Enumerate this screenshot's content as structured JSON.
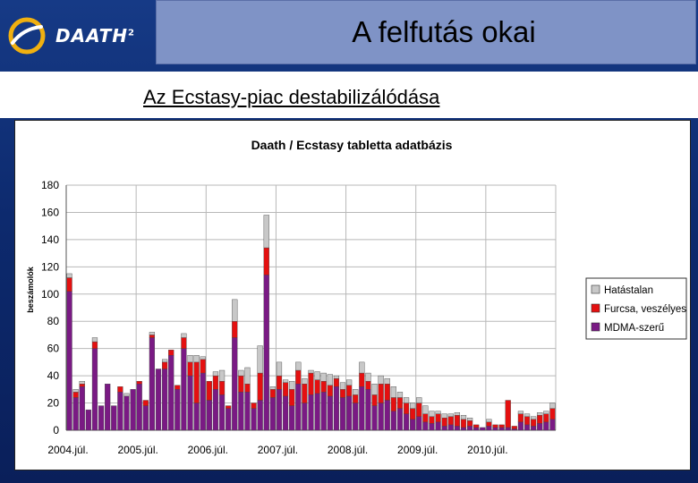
{
  "header": {
    "logo_text": "DAATH",
    "logo_sup": "2",
    "title": "A felfutás okai",
    "subtitle": "Az Ecstasy-piac destabilizálódása"
  },
  "colors": {
    "mdma": "#7a1a84",
    "furcsa": "#e41010",
    "hatastalan": "#c8c8c8"
  },
  "chart_data": {
    "type": "bar",
    "stacked": true,
    "title": "Daath / Ecstasy tabletta adatbázis",
    "ylabel": "beszámolók",
    "xlabel": "",
    "ylim": [
      0,
      180
    ],
    "yticks": [
      0,
      20,
      40,
      60,
      80,
      100,
      120,
      140,
      160,
      180
    ],
    "xtick_labels": [
      "2004.júl.",
      "2005.júl.",
      "2006.júl.",
      "2007.júl.",
      "2008.júl.",
      "2009.júl.",
      "2010.júl."
    ],
    "grid": true,
    "legend_position": "right",
    "series": [
      {
        "name": "MDMA-szerű",
        "color": "#7a1a84",
        "values": [
          102,
          24,
          32,
          15,
          60,
          18,
          34,
          18,
          28,
          25,
          30,
          34,
          18,
          68,
          45,
          45,
          55,
          30,
          60,
          40,
          20,
          42,
          22,
          30,
          26,
          16,
          68,
          28,
          28,
          16,
          22,
          114,
          24,
          30,
          25,
          18,
          34,
          20,
          26,
          27,
          28,
          25,
          32,
          24,
          25,
          20,
          32,
          30,
          18,
          20,
          22,
          14,
          16,
          12,
          8,
          10,
          6,
          5,
          6,
          3,
          4,
          3,
          2,
          3,
          2,
          2,
          3,
          2,
          2,
          2,
          1,
          6,
          4,
          3,
          5,
          6,
          8
        ]
      },
      {
        "name": "Furcsa, veszélyes",
        "color": "#e41010",
        "values": [
          10,
          4,
          2,
          0,
          5,
          0,
          0,
          0,
          4,
          0,
          0,
          2,
          4,
          2,
          0,
          5,
          4,
          3,
          8,
          10,
          30,
          10,
          14,
          10,
          10,
          2,
          12,
          12,
          6,
          4,
          20,
          20,
          6,
          10,
          10,
          12,
          10,
          14,
          16,
          10,
          8,
          8,
          6,
          6,
          8,
          6,
          10,
          6,
          8,
          14,
          12,
          10,
          8,
          8,
          8,
          10,
          6,
          5,
          6,
          6,
          6,
          8,
          6,
          4,
          2,
          0,
          3,
          2,
          2,
          20,
          2,
          6,
          6,
          5,
          6,
          6,
          8
        ]
      },
      {
        "name": "Hatástalan",
        "color": "#c8c8c8",
        "values": [
          3,
          2,
          2,
          0,
          3,
          0,
          0,
          0,
          0,
          2,
          0,
          0,
          0,
          2,
          0,
          2,
          0,
          0,
          3,
          5,
          5,
          2,
          0,
          3,
          8,
          0,
          16,
          4,
          12,
          0,
          20,
          24,
          2,
          10,
          2,
          6,
          6,
          4,
          2,
          6,
          6,
          8,
          2,
          5,
          4,
          4,
          8,
          6,
          8,
          6,
          4,
          8,
          4,
          4,
          4,
          4,
          6,
          4,
          2,
          3,
          2,
          2,
          3,
          2,
          0,
          0,
          2,
          0,
          0,
          0,
          0,
          2,
          2,
          2,
          2,
          2,
          4
        ]
      }
    ]
  }
}
